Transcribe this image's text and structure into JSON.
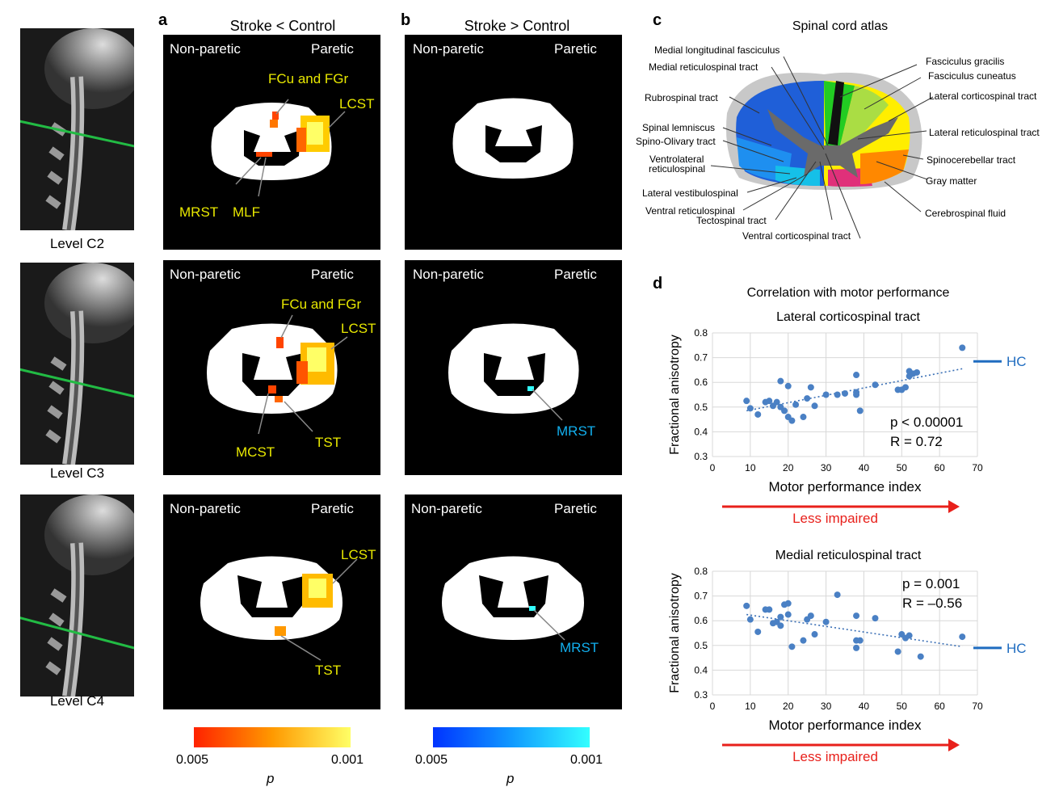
{
  "panels": {
    "a": {
      "letter": "a",
      "title": "Stroke < Control"
    },
    "b": {
      "letter": "b",
      "title": "Stroke > Control"
    },
    "c": {
      "letter": "c",
      "title": "Spinal cord atlas"
    },
    "d": {
      "letter": "d",
      "title": "Correlation with motor performance"
    }
  },
  "levels": [
    "Level C2",
    "Level C3",
    "Level C4"
  ],
  "side_labels": {
    "left": "Non-paretic",
    "right": "Paretic"
  },
  "slice_labels": {
    "a_c2": [
      "FCu and FGr",
      "LCST",
      "MRST",
      "MLF"
    ],
    "a_c3": [
      "FCu and FGr",
      "LCST",
      "MCST",
      "TST"
    ],
    "a_c4": [
      "LCST",
      "TST"
    ],
    "b_c3": [
      "MRST"
    ],
    "b_c4": [
      "MRST"
    ]
  },
  "colorbars": {
    "a": {
      "low": "0.005",
      "high": "0.001",
      "label": "p",
      "colors": [
        "#ff2200",
        "#ff9900",
        "#ffff66"
      ]
    },
    "b": {
      "low": "0.005",
      "high": "0.001",
      "label": "p",
      "colors": [
        "#0033ff",
        "#1199ff",
        "#33ffff"
      ]
    }
  },
  "atlas_labels": [
    "Medial longitudinal fasciculus",
    "Medial reticulospinal tract",
    "Rubrospinal tract",
    "Spinal lemniscus",
    "Spino-Olivary tract",
    "Ventrolateral",
    "reticulospinal",
    "Lateral vestibulospinal",
    "Ventral reticulospinal",
    "Tectospinal tract",
    "Ventral corticospinal tract",
    "Fasciculus gracilis",
    "Fasciculus cuneatus",
    "Lateral corticospinal tract",
    "Lateral reticulospinal tract",
    "Spinocerebellar tract",
    "Gray matter",
    "Cerebrospinal fluid"
  ],
  "impaired_label": "Less impaired",
  "chart_data": [
    {
      "type": "scatter",
      "title": "Lateral corticospinal tract",
      "xlabel": "Motor performance index",
      "ylabel": "Fractional anisotropy",
      "xlim": [
        0,
        70
      ],
      "ylim": [
        0.3,
        0.8
      ],
      "xticks": [
        "0",
        "10",
        "20",
        "30",
        "40",
        "50",
        "60",
        "70"
      ],
      "yticks": [
        "0.3",
        "0.4",
        "0.5",
        "0.6",
        "0.7",
        "0.8"
      ],
      "grid": true,
      "stats": {
        "p": "p < 0.00001",
        "r": "R = 0.72"
      },
      "reference": {
        "label": "HC",
        "value": 0.685
      },
      "trend": {
        "x": [
          9,
          66
        ],
        "y": [
          0.485,
          0.655
        ]
      },
      "x": [
        9,
        10,
        12,
        14,
        15,
        16,
        17,
        18,
        18,
        19,
        20,
        20,
        21,
        22,
        24,
        25,
        26,
        27,
        30,
        33,
        35,
        38,
        38,
        38,
        39,
        43,
        49,
        50,
        51,
        52,
        52,
        53,
        54,
        66
      ],
      "y": [
        0.525,
        0.495,
        0.47,
        0.52,
        0.525,
        0.505,
        0.52,
        0.605,
        0.5,
        0.485,
        0.585,
        0.46,
        0.445,
        0.51,
        0.46,
        0.535,
        0.58,
        0.505,
        0.55,
        0.55,
        0.555,
        0.63,
        0.55,
        0.56,
        0.485,
        0.59,
        0.57,
        0.57,
        0.58,
        0.625,
        0.645,
        0.635,
        0.64,
        0.74
      ]
    },
    {
      "type": "scatter",
      "title": "Medial reticulospinal tract",
      "xlabel": "Motor performance index",
      "ylabel": "Fractional anisotropy",
      "xlim": [
        0,
        70
      ],
      "ylim": [
        0.3,
        0.8
      ],
      "xticks": [
        "0",
        "10",
        "20",
        "30",
        "40",
        "50",
        "60",
        "70"
      ],
      "yticks": [
        "0.3",
        "0.4",
        "0.5",
        "0.6",
        "0.7",
        "0.8"
      ],
      "grid": true,
      "stats": {
        "p": "p = 0.001",
        "r": "R = –0.56"
      },
      "reference": {
        "label": "HC",
        "value": 0.49
      },
      "trend": {
        "x": [
          9,
          66
        ],
        "y": [
          0.625,
          0.495
        ]
      },
      "x": [
        9,
        10,
        12,
        14,
        15,
        16,
        17,
        18,
        18,
        19,
        20,
        20,
        21,
        24,
        25,
        26,
        27,
        30,
        33,
        38,
        38,
        38,
        39,
        43,
        49,
        50,
        51,
        52,
        55,
        66
      ],
      "y": [
        0.66,
        0.605,
        0.555,
        0.645,
        0.645,
        0.59,
        0.595,
        0.615,
        0.58,
        0.665,
        0.67,
        0.625,
        0.495,
        0.52,
        0.605,
        0.62,
        0.545,
        0.595,
        0.705,
        0.62,
        0.52,
        0.49,
        0.52,
        0.61,
        0.475,
        0.545,
        0.53,
        0.54,
        0.455,
        0.535
      ]
    }
  ]
}
